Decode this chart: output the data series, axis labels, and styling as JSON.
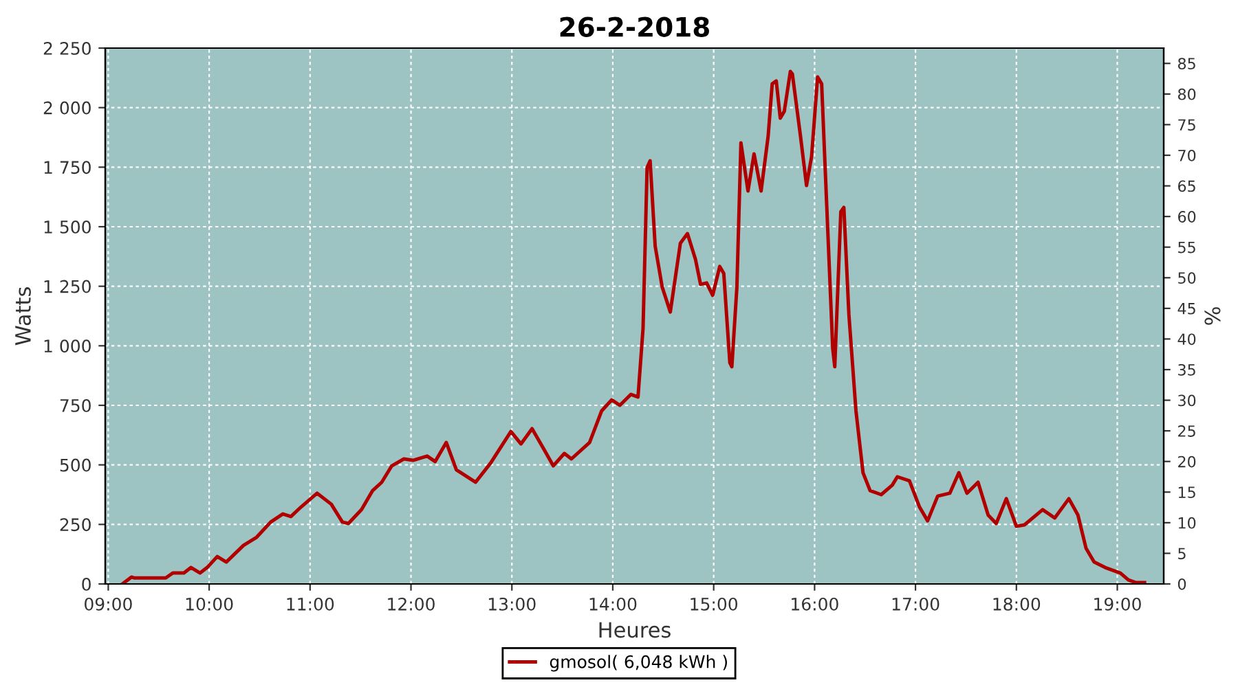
{
  "chart_data": {
    "type": "line",
    "title": "26-2-2018",
    "xlabel": "Heures",
    "ylabel": "Watts",
    "y2label": "%",
    "series": [
      {
        "name": "gmosol( 6,048 kWh )",
        "color": "#b00000",
        "x": [
          9.14,
          9.23,
          9.26,
          9.57,
          9.64,
          9.75,
          9.82,
          9.91,
          9.98,
          10.08,
          10.17,
          10.34,
          10.47,
          10.61,
          10.73,
          10.81,
          10.91,
          11.07,
          11.21,
          11.32,
          11.38,
          11.51,
          11.62,
          11.71,
          11.81,
          11.93,
          12.02,
          12.16,
          12.24,
          12.35,
          12.45,
          12.64,
          12.79,
          12.99,
          13.09,
          13.2,
          13.31,
          13.41,
          13.52,
          13.59,
          13.77,
          13.89,
          13.99,
          14.07,
          14.18,
          14.25,
          14.3,
          14.34,
          14.37,
          14.42,
          14.49,
          14.57,
          14.67,
          14.74,
          14.82,
          14.87,
          14.93,
          14.99,
          15.06,
          15.1,
          15.16,
          15.18,
          15.23,
          15.27,
          15.34,
          15.4,
          15.47,
          15.54,
          15.58,
          15.62,
          15.66,
          15.7,
          15.76,
          15.78,
          15.86,
          15.92,
          15.97,
          16.03,
          16.07,
          16.12,
          16.18,
          16.2,
          16.26,
          16.29,
          16.34,
          16.41,
          16.48,
          16.55,
          16.66,
          16.77,
          16.82,
          16.94,
          17.04,
          17.12,
          17.22,
          17.34,
          17.43,
          17.51,
          17.62,
          17.72,
          17.8,
          17.9,
          18.0,
          18.08,
          18.26,
          18.38,
          18.52,
          18.61,
          18.69,
          18.77,
          18.88,
          19.03,
          19.11,
          19.18,
          19.27
        ],
        "values": [
          0,
          29,
          25,
          25,
          46,
          46,
          69,
          46,
          69,
          115,
          92,
          162,
          196,
          260,
          294,
          283,
          323,
          381,
          335,
          260,
          254,
          312,
          392,
          427,
          496,
          525,
          519,
          537,
          514,
          594,
          479,
          427,
          508,
          640,
          588,
          652,
          571,
          496,
          548,
          525,
          594,
          727,
          773,
          750,
          796,
          785,
          1073,
          1748,
          1777,
          1419,
          1246,
          1142,
          1431,
          1471,
          1362,
          1258,
          1264,
          1212,
          1333,
          1304,
          929,
          912,
          1246,
          1852,
          1650,
          1806,
          1650,
          1881,
          2100,
          2112,
          1956,
          1985,
          2152,
          2141,
          1881,
          1673,
          1794,
          2129,
          2100,
          1592,
          987,
          912,
          1563,
          1581,
          1131,
          727,
          467,
          392,
          375,
          415,
          450,
          433,
          323,
          265,
          369,
          381,
          467,
          381,
          427,
          289,
          254,
          358,
          242,
          248,
          312,
          277,
          358,
          289,
          150,
          92,
          69,
          46,
          17,
          6,
          6
        ]
      }
    ],
    "xlim": [
      8.97,
      19.46
    ],
    "xticks": [
      {
        "value": 9,
        "label": "09:00"
      },
      {
        "value": 10,
        "label": "10:00"
      },
      {
        "value": 11,
        "label": "11:00"
      },
      {
        "value": 12,
        "label": "12:00"
      },
      {
        "value": 13,
        "label": "13:00"
      },
      {
        "value": 14,
        "label": "14:00"
      },
      {
        "value": 15,
        "label": "15:00"
      },
      {
        "value": 16,
        "label": "16:00"
      },
      {
        "value": 17,
        "label": "17:00"
      },
      {
        "value": 18,
        "label": "18:00"
      },
      {
        "value": 19,
        "label": "19:00"
      }
    ],
    "ylim": [
      0,
      2250
    ],
    "yticks": [
      0,
      250,
      500,
      750,
      {
        "value": 1000,
        "label": "1 000"
      },
      {
        "value": 1250,
        "label": "1 250"
      },
      {
        "value": 1500,
        "label": "1 500"
      },
      {
        "value": 1750,
        "label": "1 750"
      },
      {
        "value": 2000,
        "label": "2 000"
      },
      {
        "value": 2250,
        "label": "2 250"
      }
    ],
    "y2lim": [
      0,
      87.5
    ],
    "y2ticks": [
      0,
      5,
      10,
      15,
      20,
      25,
      30,
      35,
      40,
      45,
      50,
      55,
      60,
      65,
      70,
      75,
      80,
      85
    ],
    "grid": true,
    "legend": "bottom",
    "marker": "none",
    "line_style": "solid"
  }
}
